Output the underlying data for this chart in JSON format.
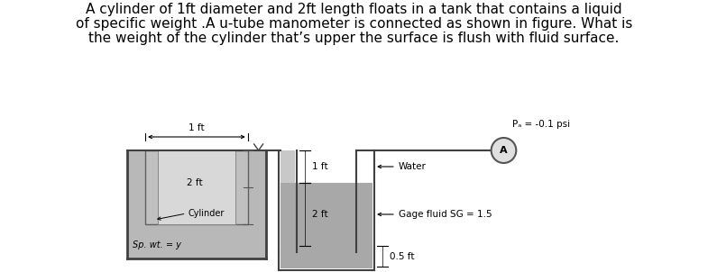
{
  "title_lines": [
    "A cylinder of 1ft diameter and 2ft length floats in a tank that contains a liquid",
    "of specific weight .A u-tube manometer is connected as shown in figure. What is",
    "the weight of the cylinder that’s upper the surface is flush with fluid surface."
  ],
  "title_fontsize": 11.0,
  "bg_color": "#ffffff",
  "fluid_gray": "#b0b0b0",
  "cylinder_outer": "#c0c0c0",
  "cylinder_inner": "#d8d8d8",
  "tube_bg": "#ffffff",
  "label_1ft_width": "1 ft",
  "label_2ft_cyl": "2 ft",
  "label_1ft_mano": "1 ft",
  "label_2ft_mano": "2 ft",
  "label_05ft": "0.5 ft",
  "label_water": "Water",
  "label_gage": "Gage fluid SG = 1.5",
  "label_pa": "Pₐ = -0.1 psi",
  "label_sp_wt": "Sp. wt. = y",
  "label_cylinder": "Cylinder"
}
